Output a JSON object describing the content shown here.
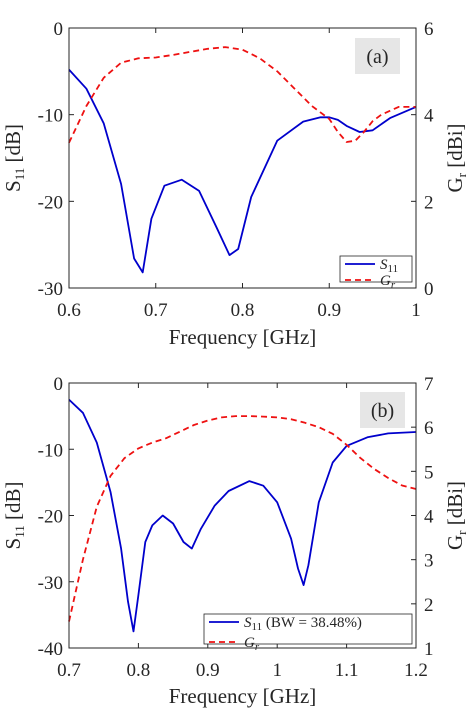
{
  "colors": {
    "s11": "#0000cc",
    "gain": "#ee1111",
    "axis": "#262626",
    "label_box": "#e6e6e6"
  },
  "chart_data": [
    {
      "type": "line",
      "panel_label": "(a)",
      "xlabel": "Frequency [GHz]",
      "ylabel_left": {
        "main": "S",
        "sub": "11",
        "unit": " [dB]"
      },
      "ylabel_right": {
        "main": "G",
        "sub": "r",
        "unit": " [dBi]"
      },
      "xlim": [
        0.6,
        1.0
      ],
      "ylim_left": [
        -30,
        0
      ],
      "ylim_right": [
        0,
        6
      ],
      "xticks": [
        "0.6",
        "0.7",
        "0.8",
        "0.9",
        "1"
      ],
      "yticks_left": [
        "0",
        "-10",
        "-20",
        "-30"
      ],
      "yticks_right": [
        "6",
        "4",
        "2",
        "0"
      ],
      "grid": false,
      "legend_position": "bottom-right",
      "legend": [
        {
          "main": "S",
          "sub": "11",
          "suffix": ""
        },
        {
          "main": "G",
          "sub": "r",
          "suffix": ""
        }
      ],
      "series": [
        {
          "axis": "left",
          "style": "solid",
          "color": "#0000cc",
          "x": [
            0.6,
            0.62,
            0.64,
            0.66,
            0.675,
            0.685,
            0.695,
            0.71,
            0.73,
            0.75,
            0.77,
            0.785,
            0.795,
            0.81,
            0.84,
            0.87,
            0.89,
            0.9,
            0.91,
            0.92,
            0.935,
            0.95,
            0.97,
            1.0
          ],
          "y": [
            -4.8,
            -7.0,
            -11.0,
            -18.0,
            -26.6,
            -28.2,
            -22.0,
            -18.2,
            -17.5,
            -18.8,
            -23.0,
            -26.2,
            -25.5,
            -19.5,
            -13.0,
            -10.8,
            -10.3,
            -10.3,
            -10.6,
            -11.3,
            -12.0,
            -11.8,
            -10.4,
            -9.1
          ]
        },
        {
          "axis": "right",
          "style": "dashed",
          "color": "#ee1111",
          "x": [
            0.6,
            0.62,
            0.64,
            0.66,
            0.68,
            0.7,
            0.72,
            0.74,
            0.76,
            0.78,
            0.8,
            0.82,
            0.84,
            0.86,
            0.88,
            0.9,
            0.91,
            0.92,
            0.93,
            0.94,
            0.95,
            0.96,
            0.98,
            1.0
          ],
          "y": [
            3.35,
            4.2,
            4.85,
            5.2,
            5.3,
            5.32,
            5.38,
            5.45,
            5.52,
            5.56,
            5.5,
            5.3,
            5.0,
            4.6,
            4.2,
            3.9,
            3.6,
            3.37,
            3.4,
            3.6,
            3.85,
            4.0,
            4.18,
            4.18
          ]
        }
      ]
    },
    {
      "type": "line",
      "panel_label": "(b)",
      "xlabel": "Frequency [GHz]",
      "ylabel_left": {
        "main": "S",
        "sub": "11",
        "unit": " [dB]"
      },
      "ylabel_right": {
        "main": "G",
        "sub": "r",
        "unit": " [dBi]"
      },
      "xlim": [
        0.7,
        1.2
      ],
      "ylim_left": [
        -40,
        0
      ],
      "ylim_right": [
        1,
        7
      ],
      "xticks": [
        "0.7",
        "0.8",
        "0.9",
        "1",
        "1.1",
        "1.2"
      ],
      "yticks_left": [
        "0",
        "-10",
        "-20",
        "-30",
        "-40"
      ],
      "yticks_right": [
        "7",
        "6",
        "5",
        "4",
        "3",
        "2",
        "1"
      ],
      "grid": false,
      "legend_position": "bottom-right",
      "legend": [
        {
          "main": "S",
          "sub": "11",
          "suffix": " (BW = 38.48%)"
        },
        {
          "main": "G",
          "sub": "r",
          "suffix": ""
        }
      ],
      "series": [
        {
          "axis": "left",
          "style": "solid",
          "color": "#0000cc",
          "x": [
            0.7,
            0.72,
            0.74,
            0.76,
            0.775,
            0.785,
            0.793,
            0.8,
            0.81,
            0.82,
            0.835,
            0.85,
            0.865,
            0.877,
            0.89,
            0.91,
            0.93,
            0.96,
            0.98,
            1.0,
            1.02,
            1.03,
            1.038,
            1.045,
            1.06,
            1.08,
            1.1,
            1.13,
            1.16,
            1.2
          ],
          "y": [
            -2.5,
            -4.5,
            -9.0,
            -16.5,
            -25.0,
            -33.0,
            -37.5,
            -32.0,
            -24.0,
            -21.5,
            -20.0,
            -21.2,
            -24.0,
            -25.0,
            -22.0,
            -18.5,
            -16.3,
            -14.8,
            -15.5,
            -18.0,
            -23.5,
            -28.0,
            -30.5,
            -27.5,
            -18.0,
            -12.0,
            -9.5,
            -8.2,
            -7.6,
            -7.4
          ]
        },
        {
          "axis": "right",
          "style": "dashed",
          "color": "#ee1111",
          "x": [
            0.7,
            0.72,
            0.74,
            0.76,
            0.78,
            0.8,
            0.82,
            0.84,
            0.86,
            0.88,
            0.9,
            0.92,
            0.94,
            0.96,
            0.98,
            1.0,
            1.02,
            1.04,
            1.06,
            1.08,
            1.1,
            1.12,
            1.14,
            1.16,
            1.18,
            1.2
          ],
          "y": [
            1.6,
            3.0,
            4.2,
            4.9,
            5.3,
            5.52,
            5.65,
            5.75,
            5.9,
            6.05,
            6.15,
            6.22,
            6.25,
            6.25,
            6.24,
            6.22,
            6.18,
            6.1,
            6.0,
            5.85,
            5.6,
            5.3,
            5.05,
            4.85,
            4.68,
            4.6
          ]
        }
      ]
    }
  ]
}
